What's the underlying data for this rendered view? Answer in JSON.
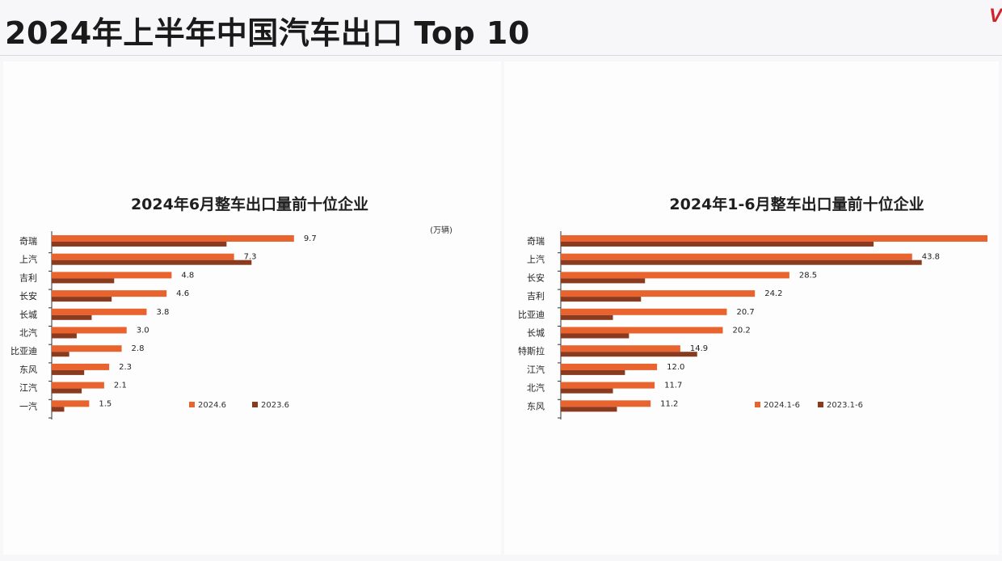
{
  "page": {
    "title": "2024年上半年中国汽车出口 Top 10",
    "logo_text": "V",
    "colors": {
      "current": "#e8632e",
      "previous": "#8a3a1f",
      "axis": "#333333"
    }
  },
  "chart_data": [
    {
      "type": "bar",
      "orientation": "horizontal",
      "title": "2024年6月整车出口量前十位企业",
      "unit": "(万辆)",
      "categories": [
        "奇瑞",
        "上汽",
        "吉利",
        "长安",
        "长城",
        "北汽",
        "比亚迪",
        "东风",
        "江汽",
        "一汽"
      ],
      "series": [
        {
          "name": "2024.6",
          "values": [
            9.7,
            7.3,
            4.8,
            4.6,
            3.8,
            3.0,
            2.8,
            2.3,
            2.1,
            1.5
          ],
          "value_labels": [
            "9.7",
            "7.3",
            "4.8",
            "4.6",
            "3.8",
            "3.0",
            "2.8",
            "2.3",
            "2.1",
            "1.5"
          ]
        },
        {
          "name": "2023.6",
          "values": [
            7.0,
            8.0,
            2.5,
            2.4,
            1.6,
            1.0,
            0.7,
            1.3,
            1.2,
            0.5
          ]
        }
      ],
      "xlim": [
        0,
        11
      ],
      "legend_position": "bottom-right",
      "grid": false
    },
    {
      "type": "bar",
      "orientation": "horizontal",
      "title": "2024年1-6月整车出口量前十位企业",
      "categories": [
        "奇瑞",
        "上汽",
        "长安",
        "吉利",
        "比亚迪",
        "长城",
        "特斯拉",
        "江汽",
        "北汽",
        "东风"
      ],
      "series": [
        {
          "name": "2024.1-6",
          "values": [
            53.2,
            43.8,
            28.5,
            24.2,
            20.7,
            20.2,
            14.9,
            12.0,
            11.7,
            11.2
          ],
          "value_labels": [
            "",
            "43.8",
            "28.5",
            "24.2",
            "20.7",
            "20.2",
            "14.9",
            "12.0",
            "11.7",
            "11.2"
          ]
        },
        {
          "name": "2023.1-6",
          "values": [
            39.0,
            45.0,
            10.5,
            10.0,
            6.5,
            8.5,
            17.0,
            8.0,
            6.5,
            7.0
          ]
        }
      ],
      "xlim": [
        0,
        54
      ],
      "legend_position": "bottom-right",
      "grid": false
    }
  ]
}
